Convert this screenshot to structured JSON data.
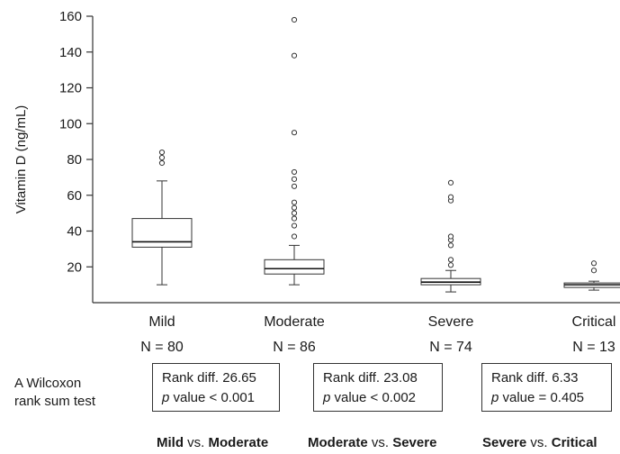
{
  "chart_data": {
    "type": "boxplot",
    "ylabel": "Vitamin D (ng/mL)",
    "ylim": [
      0,
      160
    ],
    "yticks": [
      20,
      40,
      60,
      80,
      100,
      120,
      140,
      160
    ],
    "categories": [
      {
        "name": "Mild",
        "n_label": "N = 80",
        "min": 10,
        "q1": 31,
        "median": 34,
        "q3": 47,
        "max": 68,
        "outliers": [
          78,
          81,
          84
        ]
      },
      {
        "name": "Moderate",
        "n_label": "N = 86",
        "min": 10,
        "q1": 16,
        "median": 19,
        "q3": 24,
        "max": 32,
        "outliers": [
          37,
          43,
          47,
          50,
          53,
          56,
          65,
          69,
          73,
          95,
          138,
          158
        ]
      },
      {
        "name": "Severe",
        "n_label": "N = 74",
        "min": 6,
        "q1": 10,
        "median": 11.5,
        "q3": 13.5,
        "max": 18,
        "outliers": [
          21,
          24,
          32,
          35,
          37,
          57,
          59,
          67
        ]
      },
      {
        "name": "Critical",
        "n_label": "N = 13",
        "min": 7,
        "q1": 8.5,
        "median": 10,
        "q3": 11,
        "max": 12,
        "outliers": [
          18,
          22
        ]
      }
    ]
  },
  "test_label_line1": "A Wilcoxon",
  "test_label_line2": "rank sum test",
  "comparisons": [
    {
      "rank_text": "Rank diff. 26.65",
      "p_italic": "p",
      "p_text": " value < 0.001",
      "a": "Mild",
      "vs": " vs. ",
      "b": "Moderate"
    },
    {
      "rank_text": "Rank diff. 23.08",
      "p_italic": "p",
      "p_text": " value < 0.002",
      "a": "Moderate",
      "vs": " vs. ",
      "b": "Severe"
    },
    {
      "rank_text": "Rank diff. 6.33",
      "p_italic": "p",
      "p_text": " value = 0.405",
      "a": "Severe",
      "vs": " vs. ",
      "b": "Critical"
    }
  ]
}
